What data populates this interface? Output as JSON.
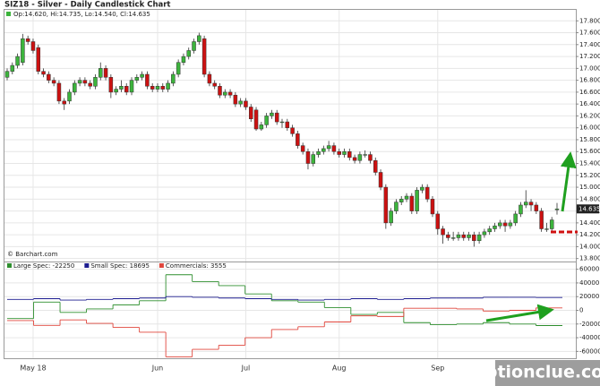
{
  "chart_data": [
    {
      "type": "candlestick",
      "title": "SIZ18 - Silver - Daily Candlestick Chart",
      "subtitle": "Op:14.620, Hi:14.735, Lo:14.540, Cl:14.635",
      "source": "© Barchart.com",
      "watermark": "optionclue.com",
      "up_color": "#3cb43c",
      "down_color": "#cc1111",
      "categories": [
        null,
        null,
        null,
        null,
        null,
        "May 18",
        null,
        null,
        null,
        null,
        null,
        null,
        null,
        null,
        null,
        null,
        null,
        null,
        null,
        null,
        null,
        null,
        null,
        null,
        null,
        null,
        null,
        null,
        null,
        "Jun",
        null,
        null,
        null,
        null,
        null,
        null,
        null,
        null,
        null,
        null,
        null,
        null,
        null,
        null,
        null,
        null,
        "Jul",
        null,
        null,
        null,
        null,
        null,
        null,
        null,
        null,
        null,
        null,
        null,
        null,
        null,
        null,
        null,
        null,
        null,
        "Aug",
        null,
        null,
        null,
        null,
        null,
        null,
        null,
        null,
        null,
        null,
        null,
        null,
        null,
        null,
        null,
        null,
        null,
        null,
        "Sep",
        null,
        null,
        null,
        null,
        null,
        null,
        null,
        null,
        null,
        null,
        null,
        null,
        null,
        null,
        null,
        null,
        null,
        null,
        null,
        null,
        null,
        null,
        null
      ],
      "open": [
        16.85,
        16.95,
        17.05,
        17.1,
        17.5,
        17.45,
        17.35,
        16.95,
        16.9,
        16.8,
        16.75,
        16.45,
        16.45,
        16.6,
        16.75,
        16.8,
        16.75,
        16.7,
        16.85,
        17.0,
        16.85,
        16.6,
        16.65,
        16.7,
        16.6,
        16.8,
        16.85,
        16.9,
        16.7,
        16.65,
        16.7,
        16.65,
        16.75,
        16.9,
        17.1,
        17.2,
        17.3,
        17.45,
        17.5,
        16.9,
        16.75,
        16.7,
        16.55,
        16.6,
        16.55,
        16.4,
        16.45,
        16.35,
        16.3,
        15.98,
        16.05,
        16.2,
        16.25,
        16.1,
        16.1,
        16.0,
        15.9,
        15.7,
        15.6,
        15.4,
        15.55,
        15.6,
        15.65,
        15.7,
        15.6,
        15.55,
        15.6,
        15.5,
        15.45,
        15.55,
        15.55,
        15.45,
        15.25,
        15.0,
        14.4,
        14.6,
        14.75,
        14.8,
        14.85,
        14.6,
        14.95,
        15.0,
        14.8,
        14.55,
        14.3,
        14.2,
        14.15,
        14.15,
        14.2,
        14.15,
        14.2,
        14.1,
        14.2,
        14.25,
        14.3,
        14.35,
        14.4,
        14.35,
        14.4,
        14.55,
        14.7,
        14.75,
        14.7,
        14.6,
        14.3,
        14.3,
        14.62
      ],
      "high": [
        17.0,
        17.1,
        17.25,
        17.58,
        17.55,
        17.5,
        17.4,
        17.0,
        16.95,
        16.85,
        16.8,
        16.5,
        16.65,
        16.8,
        16.85,
        16.85,
        16.8,
        16.9,
        17.1,
        17.05,
        16.9,
        16.7,
        16.8,
        16.75,
        16.85,
        16.9,
        16.95,
        16.95,
        16.75,
        16.75,
        16.75,
        16.8,
        16.95,
        17.15,
        17.25,
        17.35,
        17.5,
        17.6,
        17.55,
        16.95,
        16.8,
        16.75,
        16.65,
        16.65,
        16.6,
        16.5,
        16.5,
        16.4,
        16.35,
        16.1,
        16.25,
        16.3,
        16.3,
        16.15,
        16.15,
        16.05,
        15.95,
        15.75,
        15.65,
        15.6,
        15.65,
        15.7,
        15.78,
        15.75,
        15.65,
        15.65,
        15.65,
        15.55,
        15.6,
        15.62,
        15.6,
        15.5,
        15.3,
        15.05,
        14.65,
        14.8,
        14.85,
        14.9,
        14.9,
        15.0,
        15.05,
        15.05,
        14.85,
        14.6,
        14.35,
        14.25,
        14.25,
        14.25,
        14.25,
        14.25,
        14.25,
        14.25,
        14.3,
        14.35,
        14.4,
        14.45,
        14.45,
        14.45,
        14.6,
        14.75,
        14.95,
        14.8,
        14.75,
        14.65,
        14.4,
        14.5,
        14.735
      ],
      "low": [
        16.8,
        16.9,
        17.0,
        17.05,
        17.4,
        17.25,
        16.9,
        16.85,
        16.75,
        16.7,
        16.4,
        16.3,
        16.4,
        16.55,
        16.7,
        16.7,
        16.65,
        16.65,
        16.8,
        16.8,
        16.5,
        16.55,
        16.6,
        16.55,
        16.55,
        16.75,
        16.8,
        16.65,
        16.6,
        16.6,
        16.6,
        16.6,
        16.7,
        16.85,
        17.05,
        17.15,
        17.25,
        17.4,
        16.85,
        16.7,
        16.65,
        16.5,
        16.5,
        16.5,
        16.35,
        16.35,
        16.3,
        16.1,
        15.95,
        15.95,
        16.0,
        16.15,
        16.05,
        16.0,
        15.95,
        15.85,
        15.65,
        15.55,
        15.3,
        15.35,
        15.5,
        15.55,
        15.6,
        15.55,
        15.5,
        15.5,
        15.45,
        15.4,
        15.4,
        15.5,
        15.4,
        15.2,
        14.95,
        14.3,
        14.35,
        14.55,
        14.7,
        14.75,
        14.55,
        14.55,
        14.9,
        14.75,
        14.5,
        14.2,
        14.05,
        14.1,
        14.1,
        14.1,
        14.1,
        14.1,
        14.0,
        14.05,
        14.15,
        14.2,
        14.25,
        14.3,
        14.25,
        14.3,
        14.35,
        14.5,
        14.65,
        14.6,
        14.55,
        14.25,
        14.25,
        14.25,
        14.54
      ],
      "close": [
        16.95,
        17.05,
        17.2,
        17.5,
        17.45,
        17.3,
        16.95,
        16.9,
        16.8,
        16.75,
        16.45,
        16.4,
        16.6,
        16.75,
        16.8,
        16.75,
        16.7,
        16.85,
        17.0,
        16.85,
        16.6,
        16.65,
        16.7,
        16.6,
        16.8,
        16.85,
        16.9,
        16.7,
        16.65,
        16.7,
        16.65,
        16.75,
        16.9,
        17.1,
        17.2,
        17.3,
        17.45,
        17.55,
        16.9,
        16.75,
        16.7,
        16.55,
        16.6,
        16.55,
        16.4,
        16.45,
        16.35,
        16.15,
        15.98,
        16.05,
        16.2,
        16.25,
        16.1,
        16.1,
        16.0,
        15.9,
        15.7,
        15.6,
        15.4,
        15.55,
        15.6,
        15.65,
        15.7,
        15.6,
        15.55,
        15.6,
        15.5,
        15.45,
        15.55,
        15.55,
        15.45,
        15.25,
        15.0,
        14.4,
        14.6,
        14.75,
        14.8,
        14.85,
        14.6,
        14.95,
        15.0,
        14.8,
        14.55,
        14.3,
        14.2,
        14.15,
        14.15,
        14.2,
        14.15,
        14.2,
        14.1,
        14.2,
        14.25,
        14.3,
        14.35,
        14.4,
        14.35,
        14.4,
        14.55,
        14.7,
        14.75,
        14.7,
        14.6,
        14.3,
        14.3,
        14.45,
        14.635
      ],
      "ylim": [
        13.75,
        18.0
      ],
      "yticks": [
        {
          "value": 13.8,
          "label": "13.800"
        },
        {
          "value": 14.0,
          "label": "14.000"
        },
        {
          "value": 14.2,
          "label": "14.200"
        },
        {
          "value": 14.4,
          "label": "14.400"
        },
        {
          "value": 14.6,
          "label": "14.600"
        },
        {
          "value": 14.8,
          "label": "14.800"
        },
        {
          "value": 15.0,
          "label": "15.000"
        },
        {
          "value": 15.2,
          "label": "15.200"
        },
        {
          "value": 15.4,
          "label": "15.400"
        },
        {
          "value": 15.6,
          "label": "15.600"
        },
        {
          "value": 15.8,
          "label": "15.800"
        },
        {
          "value": 16.0,
          "label": "16.000"
        },
        {
          "value": 16.2,
          "label": "16.200"
        },
        {
          "value": 16.4,
          "label": "16.400"
        },
        {
          "value": 16.6,
          "label": "16.600"
        },
        {
          "value": 16.8,
          "label": "16.800"
        },
        {
          "value": 17.0,
          "label": "17.000"
        },
        {
          "value": 17.2,
          "label": "17.200"
        },
        {
          "value": 17.4,
          "label": "17.400"
        },
        {
          "value": 17.6,
          "label": "17.600"
        },
        {
          "value": 17.8,
          "label": "17.800"
        }
      ],
      "grid": true
    },
    {
      "type": "step",
      "series": [
        {
          "name": "Large Spec: -22250",
          "color": "#2f8f2f",
          "values": [
            -12000,
            12000,
            -3000,
            2000,
            8000,
            14000,
            52000,
            42000,
            36000,
            24000,
            14000,
            12000,
            4000,
            -6000,
            -3000,
            -18000,
            -21000,
            -20000,
            -18000,
            -20000,
            -22250
          ]
        },
        {
          "name": "Small Spec: 18695",
          "color": "#1c1c8f",
          "values": [
            16000,
            17000,
            15000,
            16000,
            17000,
            18000,
            20000,
            19000,
            18000,
            17000,
            16000,
            15000,
            16000,
            17000,
            16000,
            17000,
            18000,
            18000,
            19000,
            19000,
            18695
          ]
        },
        {
          "name": "Commercials: 3555",
          "color": "#e0463c",
          "values": [
            -15000,
            -22000,
            -14000,
            -19000,
            -25000,
            -32000,
            -68000,
            -57000,
            -51000,
            -40000,
            -28000,
            -24000,
            -17000,
            -8000,
            -9000,
            3000,
            3000,
            2000,
            -1000,
            0,
            3555
          ]
        }
      ],
      "ylim": [
        -70000,
        70000
      ],
      "yticks": [
        -60000,
        -40000,
        -20000,
        0,
        20000,
        40000,
        60000
      ],
      "grid": true
    }
  ]
}
